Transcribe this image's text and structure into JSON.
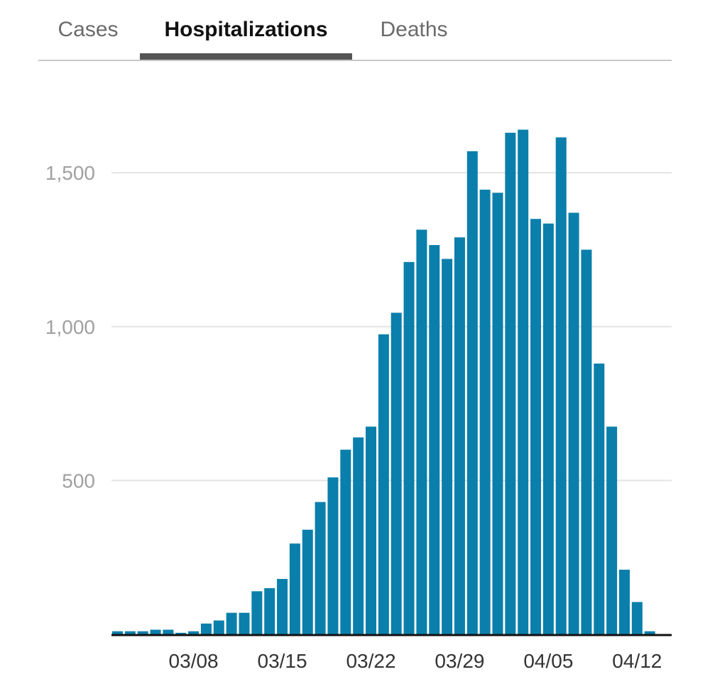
{
  "tabs": [
    {
      "label": "Cases",
      "active": false
    },
    {
      "label": "Hospitalizations",
      "active": true
    },
    {
      "label": "Deaths",
      "active": false
    }
  ],
  "colors": {
    "bar": "#0a7fab",
    "grid": "#e3e3e3",
    "axis": "#111111"
  },
  "chart_data": {
    "type": "bar",
    "title": "",
    "xlabel": "",
    "ylabel": "",
    "ylim": [
      0,
      1640
    ],
    "grid": true,
    "yticks": [
      500,
      1000,
      1500
    ],
    "ytick_labels": [
      "500",
      "1,000",
      "1,500"
    ],
    "xtick_labels": [
      "03/08",
      "03/15",
      "03/22",
      "03/29",
      "04/05",
      "04/12"
    ],
    "xtick_indices": [
      6,
      13,
      20,
      27,
      34,
      41
    ],
    "categories": [
      "03/02",
      "03/03",
      "03/04",
      "03/05",
      "03/06",
      "03/07",
      "03/08",
      "03/09",
      "03/10",
      "03/11",
      "03/12",
      "03/13",
      "03/14",
      "03/15",
      "03/16",
      "03/17",
      "03/18",
      "03/19",
      "03/20",
      "03/21",
      "03/22",
      "03/23",
      "03/24",
      "03/25",
      "03/26",
      "03/27",
      "03/28",
      "03/29",
      "03/30",
      "03/31",
      "04/01",
      "04/02",
      "04/03",
      "04/04",
      "04/05",
      "04/06",
      "04/07",
      "04/08",
      "04/09",
      "04/10",
      "04/11",
      "04/12",
      "04/13"
    ],
    "values": [
      10,
      10,
      10,
      15,
      15,
      5,
      10,
      35,
      45,
      70,
      70,
      140,
      150,
      180,
      295,
      340,
      430,
      510,
      600,
      640,
      675,
      975,
      1045,
      1210,
      1315,
      1265,
      1220,
      1290,
      1570,
      1445,
      1435,
      1630,
      1640,
      1350,
      1335,
      1615,
      1370,
      1250,
      880,
      675,
      210,
      105,
      10
    ]
  }
}
